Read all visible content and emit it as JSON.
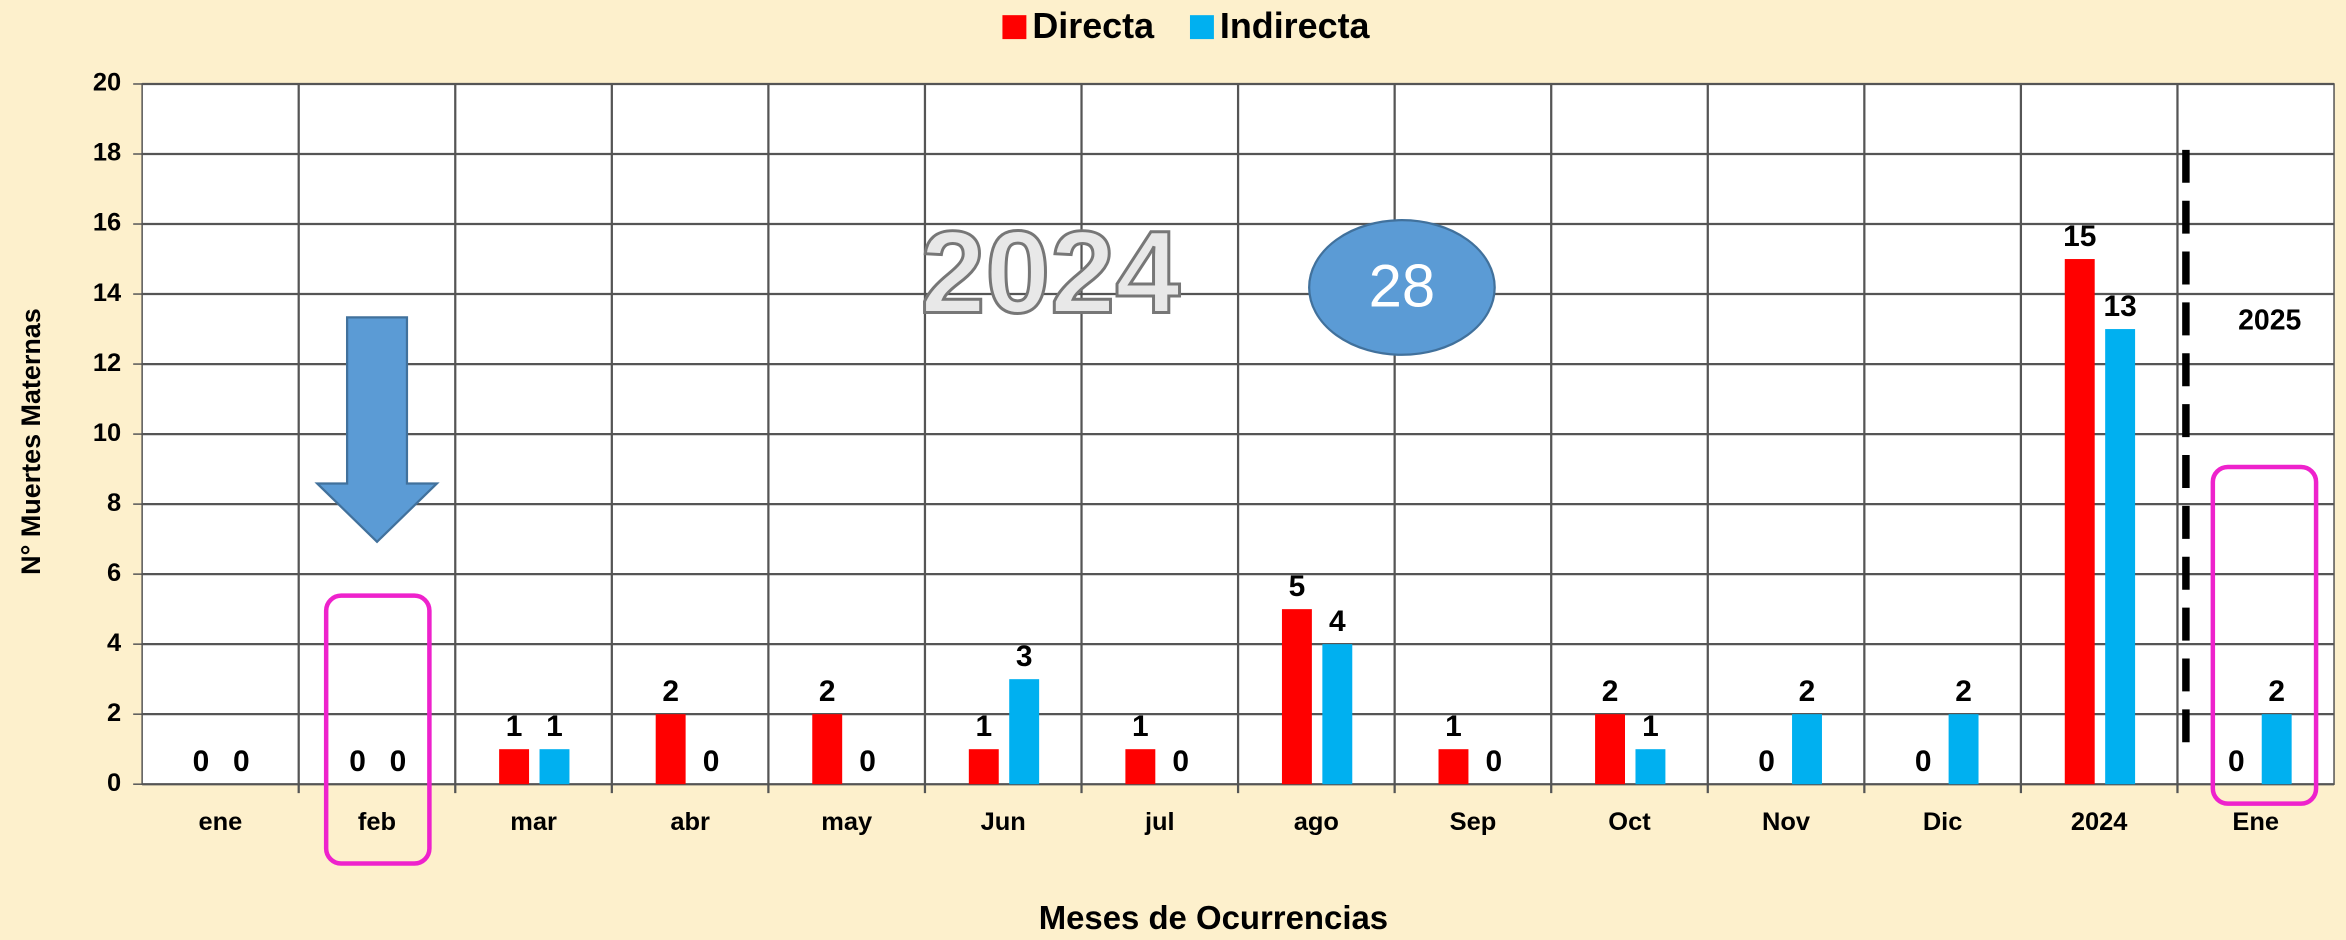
{
  "chart_data": {
    "type": "bar",
    "categories": [
      "ene",
      "feb",
      "mar",
      "abr",
      "may",
      "Jun",
      "jul",
      "ago",
      "Sep",
      "Oct",
      "Nov",
      "Dic",
      "2024",
      "Ene"
    ],
    "series": [
      {
        "name": "Directa",
        "color": "#ff0000",
        "values": [
          0,
          0,
          1,
          2,
          2,
          1,
          1,
          5,
          1,
          2,
          0,
          0,
          15,
          0
        ]
      },
      {
        "name": "Indirecta",
        "color": "#00b0f0",
        "values": [
          0,
          0,
          1,
          0,
          0,
          3,
          0,
          4,
          0,
          1,
          2,
          2,
          13,
          2
        ]
      }
    ],
    "ylim": [
      0,
      20
    ],
    "yticks": [
      0,
      2,
      4,
      6,
      8,
      10,
      12,
      14,
      16,
      18,
      20
    ],
    "grid": true,
    "y_label": "N° Muertes Maternas",
    "x_label": "Meses de Ocurrencias",
    "legend": "top",
    "year_label": "2024",
    "total_label": "28",
    "next_year_label": "2025"
  }
}
